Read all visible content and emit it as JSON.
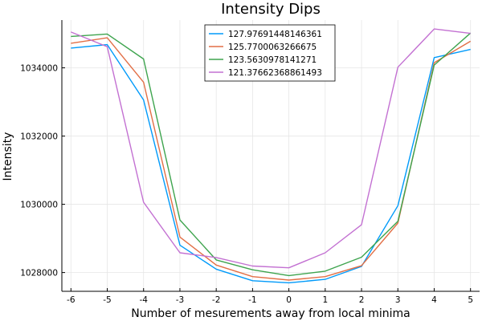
{
  "chart_data": {
    "type": "line",
    "title": "Intensity Dips",
    "xlabel": "Number of mesurements away from local minima",
    "ylabel": "Intensity",
    "x": [
      -6,
      -5,
      -4,
      -3,
      -2,
      -1,
      0,
      1,
      2,
      3,
      4,
      5
    ],
    "xlim": [
      -6.25,
      5.25
    ],
    "ylim": [
      1027450,
      1035400
    ],
    "xticks": [
      -6,
      -5,
      -4,
      -3,
      -2,
      -1,
      0,
      1,
      2,
      3,
      4,
      5
    ],
    "yticks": [
      1028000,
      1030000,
      1032000,
      1034000
    ],
    "grid": true,
    "legend_position": "top-right",
    "series": [
      {
        "name": "127.97691448146361",
        "color": "#009AFA",
        "values": [
          1034580,
          1034680,
          1033060,
          1028800,
          1028100,
          1027760,
          1027700,
          1027800,
          1028180,
          1029960,
          1034300,
          1034540
        ]
      },
      {
        "name": "125.7700063266675",
        "color": "#E26F46",
        "values": [
          1034720,
          1034880,
          1033580,
          1029040,
          1028220,
          1027880,
          1027780,
          1027880,
          1028200,
          1029450,
          1034150,
          1034780
        ]
      },
      {
        "name": "123.5630978141271",
        "color": "#3EA44E",
        "values": [
          1034920,
          1034990,
          1034260,
          1029540,
          1028370,
          1028080,
          1027910,
          1028040,
          1028450,
          1029500,
          1034080,
          1035020
        ]
      },
      {
        "name": "121.37662368861493",
        "color": "#C371D2",
        "values": [
          1035050,
          1034620,
          1030060,
          1028580,
          1028440,
          1028190,
          1028140,
          1028580,
          1029400,
          1034020,
          1035140,
          1035010
        ]
      }
    ]
  }
}
